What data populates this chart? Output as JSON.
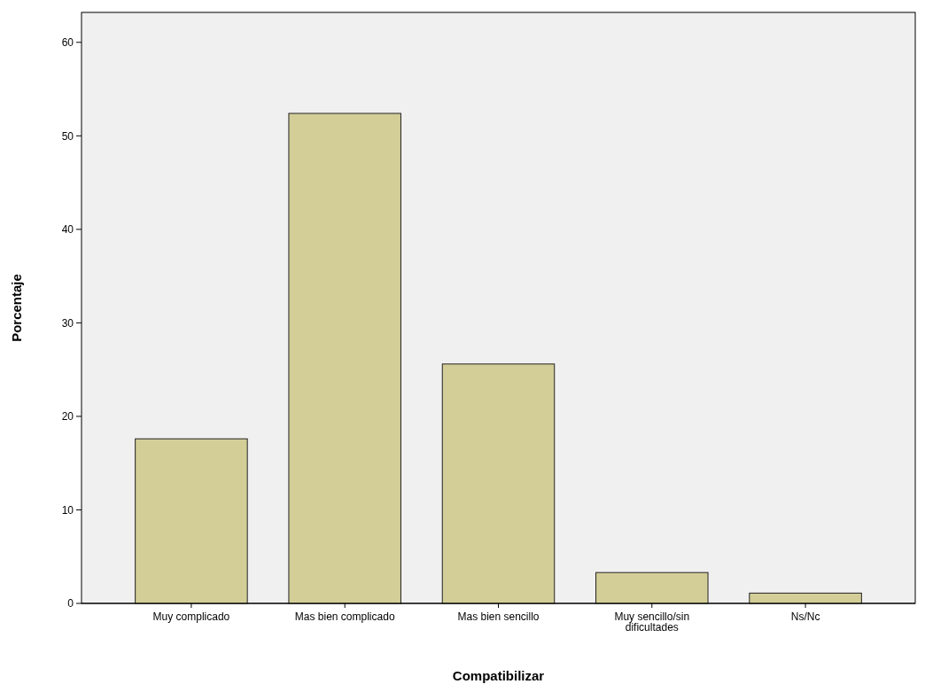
{
  "chart_data": {
    "type": "bar",
    "xlabel": "Compatibilizar",
    "ylabel": "Porcentaje",
    "categories": [
      "Muy complicado",
      "Mas bien complicado",
      "Mas bien sencillo",
      "Muy sencillo/sin dificultades",
      "Ns/Nc"
    ],
    "values": [
      17.6,
      52.4,
      25.6,
      3.3,
      1.1
    ],
    "color": "#d3ce97",
    "ylim": [
      0,
      63.2
    ],
    "yticks": [
      0,
      10,
      20,
      30,
      40,
      50,
      60
    ],
    "grid": false
  }
}
